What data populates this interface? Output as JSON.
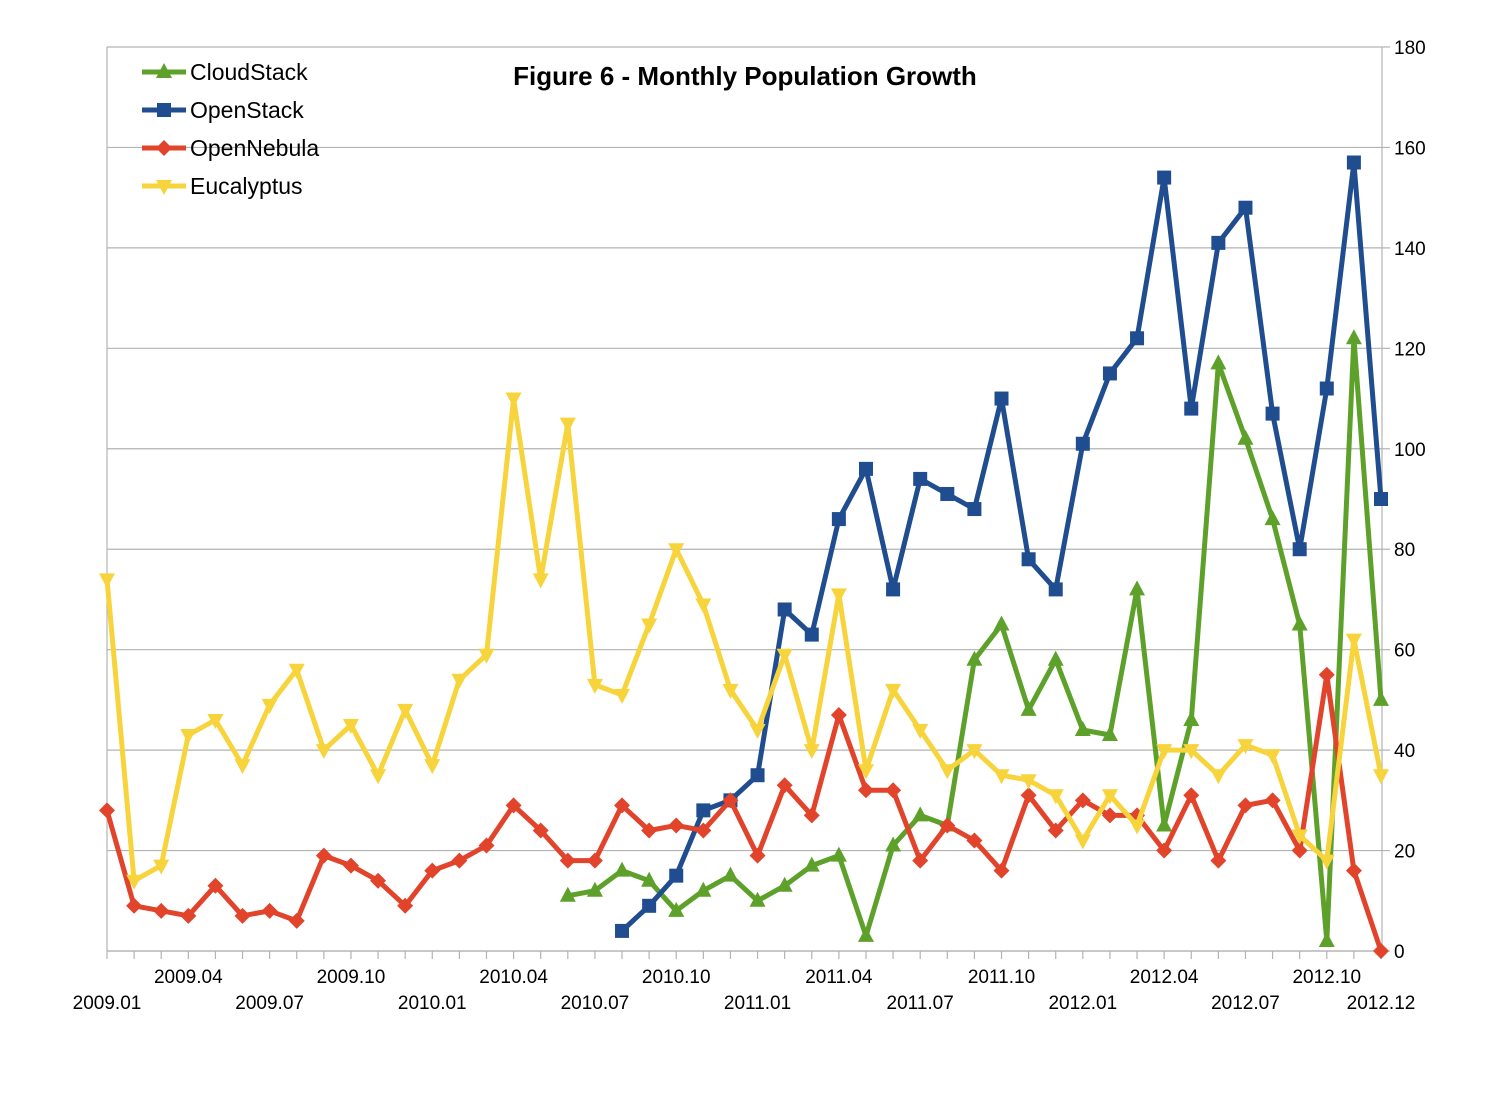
{
  "chart_data": {
    "type": "line",
    "title": "Figure 6 - Monthly Population Growth",
    "xlabel": "",
    "ylabel": "",
    "ylim": [
      0,
      180
    ],
    "yticks": [
      0,
      20,
      40,
      60,
      80,
      100,
      120,
      140,
      160,
      180
    ],
    "y_axis_side": "right",
    "grid": true,
    "legend_position": "top-left",
    "x": [
      "2009.01",
      "2009.02",
      "2009.03",
      "2009.04",
      "2009.05",
      "2009.06",
      "2009.07",
      "2009.08",
      "2009.09",
      "2009.10",
      "2009.11",
      "2009.12",
      "2010.01",
      "2010.02",
      "2010.03",
      "2010.04",
      "2010.05",
      "2010.06",
      "2010.07",
      "2010.08",
      "2010.09",
      "2010.10",
      "2010.11",
      "2010.12",
      "2011.01",
      "2011.02",
      "2011.03",
      "2011.04",
      "2011.05",
      "2011.06",
      "2011.07",
      "2011.08",
      "2011.09",
      "2011.10",
      "2011.11",
      "2011.12",
      "2012.01",
      "2012.02",
      "2012.03",
      "2012.04",
      "2012.05",
      "2012.06",
      "2012.07",
      "2012.08",
      "2012.09",
      "2012.10",
      "2012.11",
      "2012.12"
    ],
    "xtick_labels_upper": [
      "2009.04",
      "2009.10",
      "2010.04",
      "2010.10",
      "2011.04",
      "2011.10",
      "2012.04",
      "2012.10"
    ],
    "xtick_labels_lower": [
      "2009.01",
      "2009.07",
      "2010.01",
      "2010.07",
      "2011.01",
      "2011.07",
      "2012.01",
      "2012.07",
      "2012.12"
    ],
    "series": [
      {
        "name": "CloudStack",
        "color": "#5ea12a",
        "marker": "triangle-up",
        "values": [
          null,
          null,
          null,
          null,
          null,
          null,
          null,
          null,
          null,
          null,
          null,
          null,
          null,
          null,
          null,
          null,
          null,
          11,
          12,
          16,
          14,
          8,
          12,
          15,
          10,
          13,
          17,
          19,
          3,
          21,
          27,
          25,
          58,
          65,
          48,
          58,
          44,
          43,
          72,
          25,
          46,
          117,
          102,
          86,
          65,
          2,
          122,
          50
        ]
      },
      {
        "name": "OpenStack",
        "color": "#1f4d8f",
        "marker": "square",
        "values": [
          null,
          null,
          null,
          null,
          null,
          null,
          null,
          null,
          null,
          null,
          null,
          null,
          null,
          null,
          null,
          null,
          null,
          null,
          null,
          4,
          9,
          15,
          28,
          30,
          35,
          68,
          63,
          86,
          96,
          72,
          94,
          91,
          88,
          110,
          78,
          72,
          101,
          115,
          122,
          154,
          108,
          141,
          148,
          107,
          80,
          112,
          157,
          90
        ]
      },
      {
        "name": "OpenNebula",
        "color": "#e2432b",
        "marker": "diamond",
        "values": [
          28,
          9,
          8,
          7,
          13,
          7,
          8,
          6,
          19,
          17,
          14,
          9,
          16,
          18,
          21,
          29,
          24,
          18,
          18,
          29,
          24,
          25,
          24,
          30,
          19,
          33,
          27,
          47,
          32,
          32,
          18,
          25,
          22,
          16,
          31,
          24,
          30,
          27,
          27,
          20,
          31,
          18,
          29,
          30,
          20,
          55,
          16,
          0
        ]
      },
      {
        "name": "Eucalyptus",
        "color": "#f7d33c",
        "marker": "triangle-down",
        "values": [
          74,
          14,
          17,
          43,
          46,
          37,
          49,
          56,
          40,
          45,
          35,
          48,
          37,
          54,
          59,
          110,
          74,
          105,
          53,
          51,
          65,
          80,
          69,
          52,
          44,
          59,
          40,
          71,
          36,
          52,
          44,
          36,
          40,
          35,
          34,
          31,
          22,
          31,
          25,
          40,
          40,
          35,
          41,
          39,
          23,
          18,
          62,
          35
        ]
      }
    ]
  }
}
